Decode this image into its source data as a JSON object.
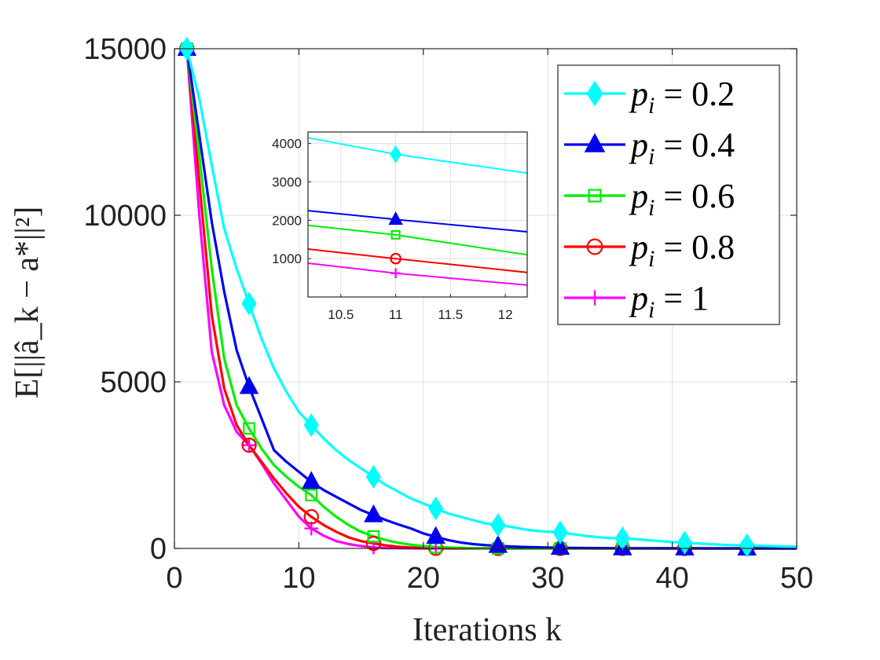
{
  "chart_data": [
    {
      "type": "line",
      "xlabel": "Iterations k",
      "ylabel": "E[||â_k − a*||²]",
      "xlim": [
        0,
        50
      ],
      "ylim": [
        0,
        15000
      ],
      "xticks": [
        0,
        10,
        20,
        30,
        40,
        50
      ],
      "yticks": [
        0,
        5000,
        10000,
        15000
      ],
      "xtick_labels": [
        "0",
        "10",
        "20",
        "30",
        "40",
        "50"
      ],
      "ytick_labels": [
        "0",
        "5000",
        "10000",
        "15000"
      ],
      "grid": true,
      "legend_position": "top-right",
      "series": [
        {
          "name": "p_i = 0.2",
          "label": "p",
          "sub": "i",
          "rhs": "= 0.2",
          "color": "#00ffff",
          "marker": "diamond",
          "x": [
            1,
            2,
            3,
            4,
            5,
            6,
            7,
            8,
            9,
            10,
            11,
            12,
            13,
            14,
            15,
            16,
            17,
            18,
            19,
            20,
            21,
            22,
            23,
            24,
            25,
            26,
            27,
            28,
            29,
            30,
            31,
            32,
            33,
            34,
            35,
            36,
            37,
            38,
            39,
            40,
            41,
            42,
            43,
            44,
            45,
            46,
            47,
            48,
            49,
            50
          ],
          "y": [
            15000,
            13500,
            11500,
            9600,
            8400,
            7350,
            6300,
            5400,
            4700,
            4100,
            3700,
            3300,
            2950,
            2650,
            2400,
            2150,
            1900,
            1700,
            1500,
            1350,
            1200,
            1050,
            950,
            850,
            750,
            700,
            650,
            580,
            530,
            500,
            480,
            430,
            380,
            340,
            310,
            300,
            280,
            250,
            220,
            190,
            170,
            150,
            130,
            110,
            100,
            90,
            80,
            70,
            60,
            55
          ],
          "marker_x": [
            1,
            6,
            11,
            16,
            21,
            26,
            31,
            36,
            41,
            46
          ]
        },
        {
          "name": "p_i = 0.4",
          "label": "p",
          "sub": "i",
          "rhs": "= 0.4",
          "color": "#0000ee",
          "marker": "triangle",
          "x": [
            1,
            2,
            3,
            4,
            5,
            6,
            7,
            8,
            9,
            10,
            11,
            12,
            13,
            14,
            15,
            16,
            17,
            18,
            19,
            20,
            21,
            22,
            23,
            24,
            25,
            26,
            27,
            28,
            29,
            30,
            31,
            32,
            33,
            34,
            35,
            36,
            37,
            38,
            39,
            40,
            41,
            42,
            43,
            44,
            45,
            46,
            47,
            48,
            49,
            50
          ],
          "y": [
            15000,
            12400,
            9800,
            7700,
            5950,
            4850,
            3900,
            2950,
            2600,
            2300,
            2000,
            1750,
            1550,
            1350,
            1150,
            1000,
            850,
            720,
            600,
            450,
            350,
            250,
            180,
            130,
            100,
            80,
            60,
            45,
            35,
            25,
            20,
            15,
            12,
            10,
            8,
            6,
            5,
            4,
            3,
            3,
            2,
            2,
            1,
            1,
            1,
            1,
            0,
            0,
            0,
            0
          ],
          "marker_x": [
            1,
            6,
            11,
            16,
            21,
            26,
            31,
            36,
            41,
            46
          ]
        },
        {
          "name": "p_i = 0.6",
          "label": "p",
          "sub": "i",
          "rhs": "= 0.6",
          "color": "#00ee00",
          "marker": "square",
          "x": [
            1,
            2,
            3,
            4,
            5,
            6,
            7,
            8,
            9,
            10,
            11,
            12,
            13,
            14,
            15,
            16,
            17,
            18,
            19,
            20,
            21,
            22,
            23,
            24,
            25,
            26,
            27,
            28,
            29,
            30,
            31,
            32,
            33,
            34,
            35,
            36,
            37,
            38,
            39,
            40,
            41,
            42,
            43,
            44,
            45,
            46,
            47,
            48,
            49,
            50
          ],
          "y": [
            15000,
            11800,
            8400,
            5700,
            4300,
            3600,
            3000,
            2500,
            2150,
            1850,
            1600,
            1250,
            950,
            700,
            500,
            360,
            250,
            170,
            110,
            70,
            40,
            25,
            15,
            8,
            4,
            2,
            1,
            0,
            0,
            0,
            0,
            0,
            0,
            0,
            0,
            0,
            0,
            0,
            0,
            0,
            0,
            0,
            0,
            0,
            0,
            0,
            0,
            0,
            0,
            0
          ],
          "marker_x": [
            1,
            6,
            11,
            16,
            21,
            26,
            31,
            36,
            41,
            46
          ]
        },
        {
          "name": "p_i = 0.8",
          "label": "p",
          "sub": "i",
          "rhs": "= 0.8",
          "color": "#ff0000",
          "marker": "circle",
          "x": [
            1,
            2,
            3,
            4,
            5,
            6,
            7,
            8,
            9,
            10,
            11,
            12,
            13,
            14,
            15,
            16,
            17,
            18,
            19,
            20,
            21,
            22,
            23,
            24,
            25,
            26,
            27,
            28,
            29,
            30,
            31,
            32,
            33,
            34,
            35,
            36,
            37,
            38,
            39,
            40,
            41,
            42,
            43,
            44,
            45,
            46,
            47,
            48,
            49,
            50
          ],
          "y": [
            15000,
            11000,
            7000,
            4800,
            3700,
            3100,
            2600,
            2100,
            1650,
            1250,
            950,
            700,
            500,
            330,
            220,
            150,
            90,
            50,
            25,
            10,
            5,
            2,
            1,
            0,
            0,
            0,
            0,
            0,
            0,
            0,
            0,
            0,
            0,
            0,
            0,
            0,
            0,
            0,
            0,
            0,
            0,
            0,
            0,
            0,
            0,
            0,
            0,
            0,
            0,
            0
          ],
          "marker_x": [
            1,
            6,
            11,
            16,
            21,
            26,
            31,
            36,
            41,
            46
          ]
        },
        {
          "name": "p_i = 1",
          "label": "p",
          "sub": "i",
          "rhs": "= 1",
          "color": "#ff00ff",
          "marker": "plus",
          "x": [
            1,
            2,
            3,
            4,
            5,
            6,
            7,
            8,
            9,
            10,
            11,
            12,
            13,
            14,
            15,
            16,
            17,
            18,
            19,
            20,
            21,
            22,
            23,
            24,
            25,
            26,
            27,
            28,
            29,
            30,
            31,
            32,
            33,
            34,
            35,
            36,
            37,
            38,
            39,
            40,
            41,
            42,
            43,
            44,
            45,
            46,
            47,
            48,
            49,
            50
          ],
          "y": [
            15000,
            10000,
            5900,
            4300,
            3500,
            3100,
            2550,
            1950,
            1450,
            950,
            600,
            380,
            220,
            130,
            70,
            30,
            10,
            5,
            2,
            0,
            0,
            0,
            0,
            0,
            0,
            0,
            0,
            0,
            0,
            0,
            0,
            0,
            0,
            0,
            0,
            0,
            0,
            0,
            0,
            0,
            0,
            0,
            0,
            0,
            0,
            0,
            0,
            0,
            0,
            0
          ],
          "marker_x": [
            1,
            6,
            11,
            16,
            21,
            26,
            31,
            36,
            41,
            46
          ]
        }
      ]
    },
    {
      "type": "line",
      "role": "inset zoom",
      "xlim": [
        10.2,
        12.2
      ],
      "ylim": [
        0,
        4300
      ],
      "xticks": [
        10.5,
        11,
        11.5,
        12
      ],
      "yticks": [
        1000,
        2000,
        3000,
        4000
      ],
      "xtick_labels": [
        "10.5",
        "11",
        "11.5",
        "12"
      ],
      "ytick_labels": [
        "1000",
        "2000",
        "3000",
        "4000"
      ],
      "grid": true,
      "marker_x": 11,
      "series": [
        {
          "name": "p_i = 0.2",
          "color": "#00ffff",
          "marker": "diamond",
          "x": [
            10.2,
            11,
            12.2
          ],
          "y": [
            4150,
            3720,
            3230
          ]
        },
        {
          "name": "p_i = 0.4",
          "color": "#0000ee",
          "marker": "triangle",
          "x": [
            10.2,
            11,
            12.2
          ],
          "y": [
            2250,
            2020,
            1700
          ]
        },
        {
          "name": "p_i = 0.6",
          "color": "#00ee00",
          "marker": "square",
          "x": [
            10.2,
            11,
            12.2
          ],
          "y": [
            1870,
            1620,
            1100
          ]
        },
        {
          "name": "p_i = 0.8",
          "color": "#ff0000",
          "marker": "circle",
          "x": [
            10.2,
            11,
            12.2
          ],
          "y": [
            1250,
            1000,
            640
          ]
        },
        {
          "name": "p_i = 1",
          "color": "#ff00ff",
          "marker": "plus",
          "x": [
            10.2,
            11,
            12.2
          ],
          "y": [
            880,
            620,
            310
          ]
        }
      ]
    }
  ]
}
